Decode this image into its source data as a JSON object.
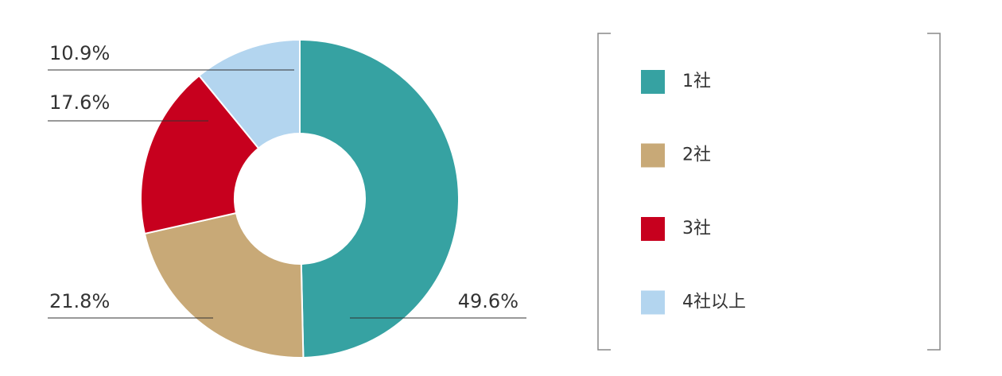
{
  "chart_data": {
    "type": "pie",
    "categories": [
      "1社",
      "2社",
      "3社",
      "4社以上"
    ],
    "values": [
      49.6,
      21.8,
      17.6,
      10.9
    ],
    "value_labels": [
      "49.6%",
      "21.8%",
      "17.6%",
      "10.9%"
    ],
    "colors": [
      "#36a2a2",
      "#c8a977",
      "#c7001e",
      "#b3d5ef"
    ],
    "donut": true
  }
}
